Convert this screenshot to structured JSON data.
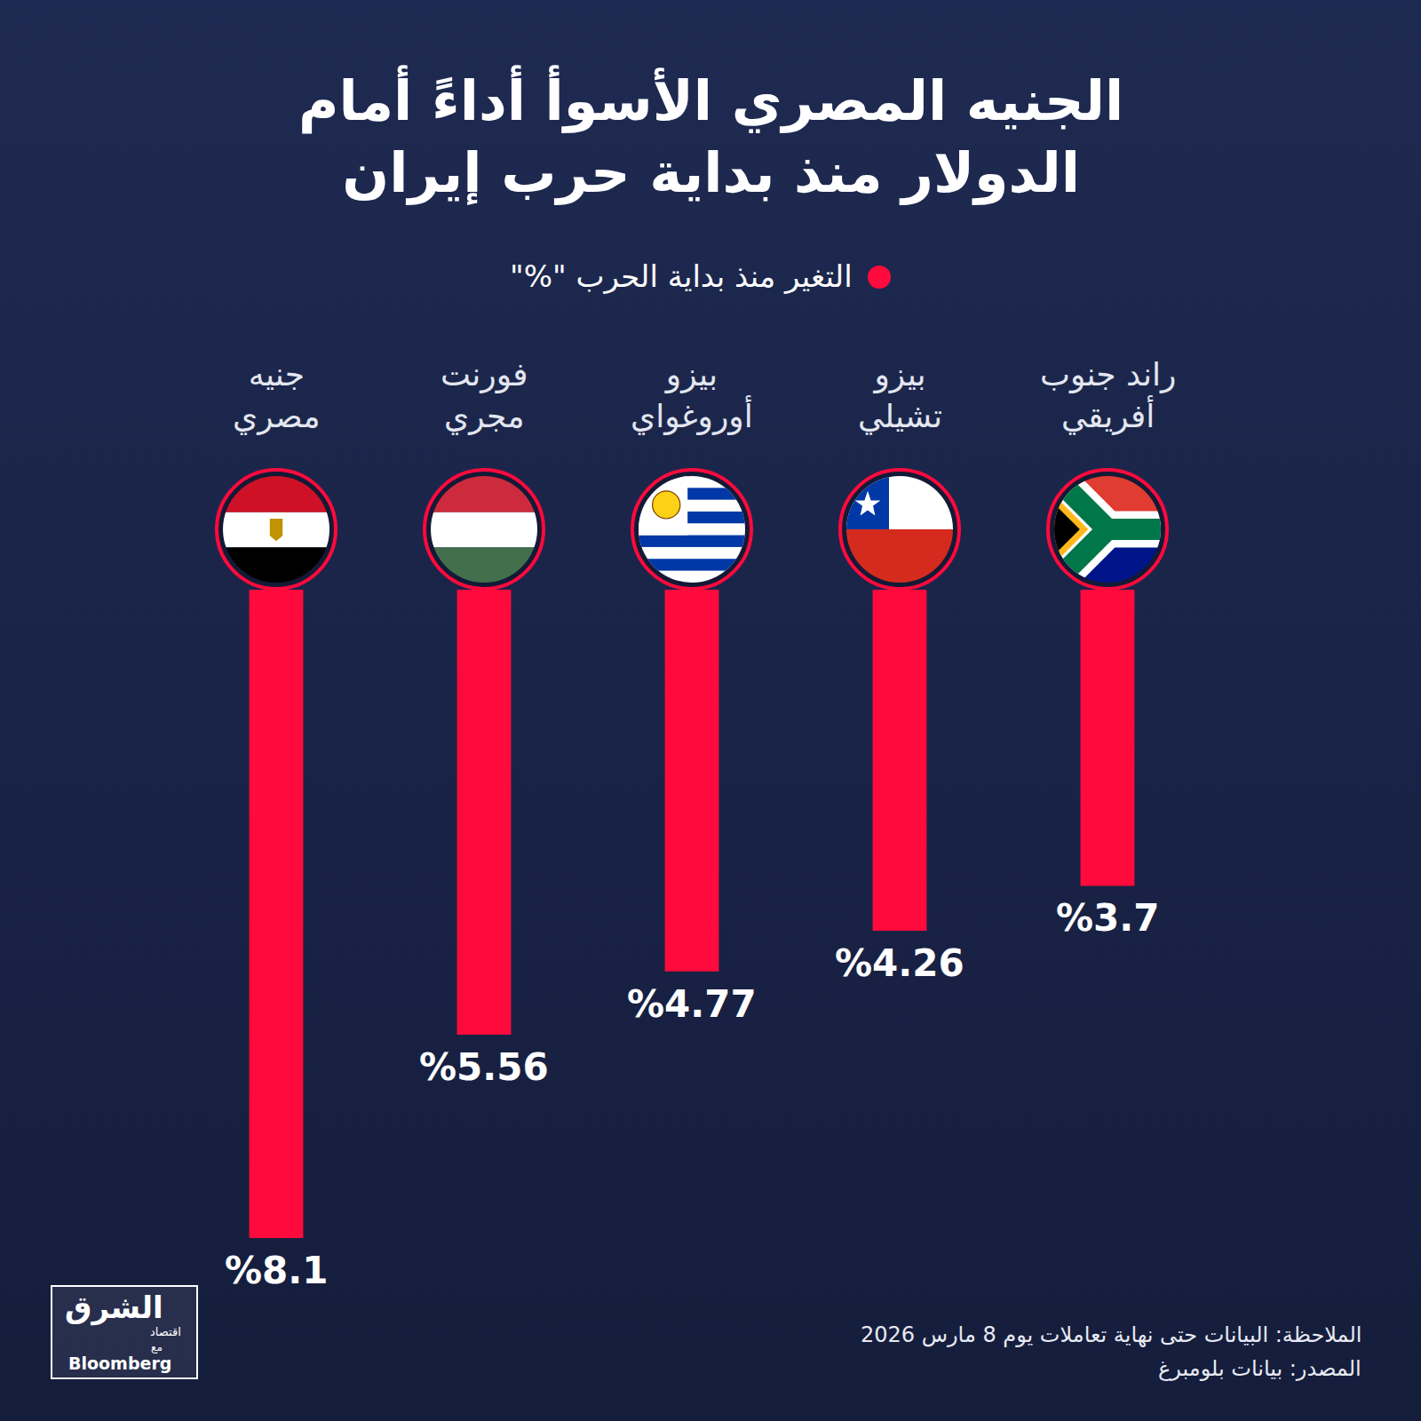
{
  "chart_data": {
    "type": "bar",
    "title": "الجنيه المصري الأسوأ أداءً أمام الدولار منذ بداية حرب إيران",
    "subtitle": "التغير منذ بداية الحرب \"%\"",
    "categories": [
      "جنيه مصري",
      "فورنت مجري",
      "بيزو أوروغواي",
      "بيزو تشيلي",
      "راند جنوب أفريقي"
    ],
    "values": [
      8.1,
      5.56,
      4.77,
      4.26,
      3.7
    ],
    "value_labels": [
      "%8.1",
      "%5.56",
      "%4.77",
      "%4.26",
      "%3.7"
    ],
    "color": "#ff0a3c",
    "ylim": [
      0,
      8.5
    ],
    "data_labels": true,
    "tick_labels": false,
    "grid": false,
    "annotations": [
      "الملاحظة: البيانات حتى نهاية تعاملات يوم 8 مارس 2026",
      "المصدر: بيانات بلومبرغ"
    ],
    "logo": [
      "الشرق",
      "اقتصاد",
      "مع",
      "Bloomberg"
    ]
  }
}
